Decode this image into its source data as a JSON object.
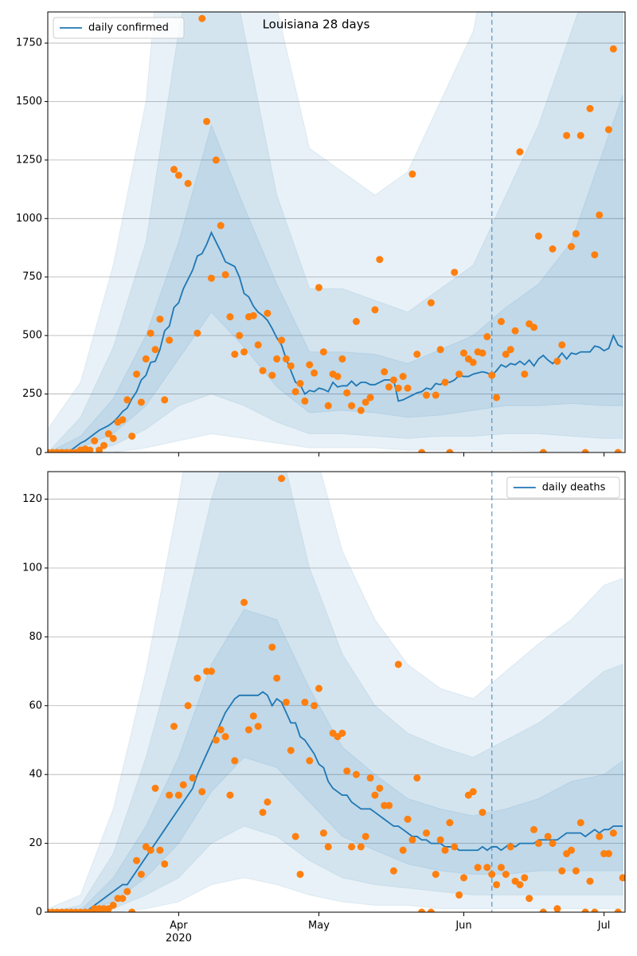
{
  "chart_data": [
    {
      "type": "line",
      "title": "Louisiana 28 days",
      "legend": "upper left",
      "grid": true,
      "xlim": [
        0,
        123.5
      ],
      "ylim": [
        0,
        1883
      ],
      "yticks": [
        0,
        250,
        500,
        750,
        1000,
        1250,
        1500,
        1750
      ],
      "vline": 95,
      "x": [
        0,
        1,
        2,
        3,
        4,
        5,
        6,
        7,
        8,
        9,
        10,
        11,
        12,
        13,
        14,
        15,
        16,
        17,
        18,
        19,
        20,
        21,
        22,
        23,
        24,
        25,
        26,
        27,
        28,
        29,
        30,
        31,
        32,
        33,
        34,
        35,
        36,
        37,
        38,
        39,
        40,
        41,
        42,
        43,
        44,
        45,
        46,
        47,
        48,
        49,
        50,
        51,
        52,
        53,
        54,
        55,
        56,
        57,
        58,
        59,
        60,
        61,
        62,
        63,
        64,
        65,
        66,
        67,
        68,
        69,
        70,
        71,
        72,
        73,
        74,
        75,
        76,
        77,
        78,
        79,
        80,
        81,
        82,
        83,
        84,
        85,
        86,
        87,
        88,
        89,
        90,
        91,
        92,
        93,
        94,
        95,
        96,
        97,
        98,
        99,
        100,
        101,
        102,
        103,
        104,
        105,
        106,
        107,
        108,
        109,
        110,
        111,
        112,
        113,
        114,
        115,
        116,
        117,
        118,
        119,
        120,
        121,
        122,
        123
      ],
      "series": [
        {
          "name": "daily confirmed",
          "color": "#1f77b4",
          "values": [
            0,
            0,
            0,
            0,
            0,
            10,
            25,
            40,
            50,
            65,
            80,
            95,
            105,
            115,
            130,
            150,
            175,
            190,
            230,
            260,
            310,
            330,
            385,
            390,
            440,
            520,
            540,
            620,
            640,
            700,
            740,
            780,
            840,
            850,
            890,
            940,
            900,
            860,
            815,
            805,
            795,
            750,
            680,
            665,
            625,
            600,
            585,
            565,
            530,
            490,
            460,
            400,
            350,
            300,
            290,
            250,
            265,
            260,
            275,
            270,
            260,
            300,
            280,
            285,
            285,
            305,
            285,
            300,
            300,
            290,
            290,
            300,
            310,
            310,
            310,
            220,
            225,
            235,
            245,
            255,
            260,
            275,
            270,
            295,
            290,
            305,
            300,
            310,
            330,
            325,
            325,
            335,
            340,
            345,
            340,
            330,
            350,
            375,
            365,
            380,
            375,
            390,
            375,
            395,
            370,
            400,
            415,
            395,
            380,
            400,
            425,
            400,
            425,
            420,
            430,
            430,
            430,
            455,
            450,
            435,
            445,
            500,
            460,
            450
          ]
        }
      ],
      "points": {
        "color": "#ff7f0e",
        "values": [
          0,
          0,
          0,
          0,
          0,
          0,
          0,
          10,
          15,
          10,
          50,
          10,
          30,
          80,
          60,
          130,
          140,
          225,
          70,
          335,
          215,
          400,
          510,
          440,
          570,
          225,
          480,
          1210,
          1185,
          null,
          1150,
          null,
          510,
          1855,
          1415,
          745,
          1250,
          970,
          760,
          580,
          420,
          500,
          430,
          580,
          585,
          460,
          350,
          595,
          330,
          400,
          480,
          400,
          370,
          260,
          295,
          220,
          375,
          340,
          705,
          430,
          200,
          335,
          325,
          400,
          255,
          200,
          560,
          180,
          215,
          235,
          610,
          825,
          345,
          280,
          310,
          275,
          325,
          275,
          1190,
          420,
          0,
          245,
          640,
          245,
          440,
          300,
          0,
          770,
          335,
          425,
          400,
          385,
          430,
          425,
          495,
          330,
          235,
          560,
          420,
          440,
          520,
          1285,
          335,
          550,
          535,
          925,
          0,
          null,
          870,
          390,
          460,
          1355,
          880,
          935,
          1355,
          0,
          1470,
          845,
          1015,
          null,
          1380,
          1725,
          0,
          null
        ]
      },
      "band_color": "#1f77b4",
      "band_x": [
        0,
        7,
        14,
        21,
        28,
        35,
        42,
        49,
        56,
        63,
        70,
        77,
        84,
        91,
        98,
        105,
        112,
        119,
        123
      ],
      "bands": [
        {
          "lower": [
            0,
            0,
            0,
            20,
            50,
            80,
            60,
            40,
            20,
            20,
            20,
            10,
            10,
            10,
            10,
            5,
            5,
            5,
            5
          ],
          "upper": [
            100,
            300,
            800,
            1500,
            3000,
            4000,
            3000,
            1900,
            1300,
            1200,
            1100,
            1200,
            1500,
            1800,
            2500,
            3000,
            3500,
            4000,
            4500
          ]
        },
        {
          "lower": [
            0,
            5,
            30,
            100,
            200,
            250,
            200,
            130,
            80,
            80,
            70,
            60,
            70,
            70,
            80,
            80,
            70,
            60,
            60
          ],
          "upper": [
            0,
            150,
            450,
            900,
            1800,
            2500,
            1800,
            1100,
            700,
            700,
            650,
            600,
            700,
            800,
            1100,
            1400,
            1800,
            2200,
            2500
          ]
        },
        {
          "lower": [
            0,
            20,
            80,
            200,
            400,
            600,
            450,
            280,
            170,
            180,
            170,
            150,
            160,
            180,
            200,
            200,
            210,
            200,
            200
          ],
          "upper": [
            0,
            70,
            230,
            500,
            900,
            1400,
            1050,
            720,
            430,
            430,
            420,
            380,
            440,
            500,
            620,
            720,
            900,
            1300,
            1530
          ]
        }
      ]
    },
    {
      "type": "line",
      "legend": "upper right",
      "grid": true,
      "xlim": [
        0,
        123.5
      ],
      "ylim": [
        0,
        128
      ],
      "yticks": [
        0,
        20,
        40,
        60,
        80,
        100,
        120
      ],
      "xticks": [
        {
          "value": 28,
          "label": "Apr"
        },
        {
          "value": 58,
          "label": "May"
        },
        {
          "value": 89,
          "label": "Jun"
        },
        {
          "value": 119,
          "label": "Jul"
        }
      ],
      "x_offset_label": "2020",
      "vline": 95,
      "x": [
        0,
        1,
        2,
        3,
        4,
        5,
        6,
        7,
        8,
        9,
        10,
        11,
        12,
        13,
        14,
        15,
        16,
        17,
        18,
        19,
        20,
        21,
        22,
        23,
        24,
        25,
        26,
        27,
        28,
        29,
        30,
        31,
        32,
        33,
        34,
        35,
        36,
        37,
        38,
        39,
        40,
        41,
        42,
        43,
        44,
        45,
        46,
        47,
        48,
        49,
        50,
        51,
        52,
        53,
        54,
        55,
        56,
        57,
        58,
        59,
        60,
        61,
        62,
        63,
        64,
        65,
        66,
        67,
        68,
        69,
        70,
        71,
        72,
        73,
        74,
        75,
        76,
        77,
        78,
        79,
        80,
        81,
        82,
        83,
        84,
        85,
        86,
        87,
        88,
        89,
        90,
        91,
        92,
        93,
        94,
        95,
        96,
        97,
        98,
        99,
        100,
        101,
        102,
        103,
        104,
        105,
        106,
        107,
        108,
        109,
        110,
        111,
        112,
        113,
        114,
        115,
        116,
        117,
        118,
        119,
        120,
        121,
        122,
        123
      ],
      "series": [
        {
          "name": "daily deaths",
          "color": "#1f77b4",
          "values": [
            0,
            0,
            0,
            0,
            0,
            0,
            0,
            0,
            0,
            1,
            2,
            3,
            4,
            5,
            6,
            7,
            8,
            8,
            10,
            12,
            14,
            16,
            18,
            20,
            22,
            24,
            26,
            28,
            30,
            32,
            34,
            36,
            40,
            43,
            46,
            49,
            52,
            55,
            58,
            60,
            62,
            63,
            63,
            63,
            63,
            63,
            64,
            63,
            60,
            62,
            61,
            58,
            55,
            55,
            51,
            50,
            48,
            46,
            43,
            42,
            38,
            36,
            35,
            34,
            34,
            32,
            31,
            30,
            30,
            30,
            29,
            28,
            27,
            26,
            25,
            25,
            24,
            23,
            22,
            22,
            21,
            21,
            20,
            20,
            20,
            19,
            19,
            19,
            18,
            18,
            18,
            18,
            18,
            19,
            18,
            19,
            19,
            18,
            19,
            20,
            19,
            20,
            20,
            20,
            20,
            21,
            21,
            21,
            21,
            21,
            22,
            23,
            23,
            23,
            23,
            22,
            23,
            24,
            23,
            24,
            24,
            25,
            25,
            25
          ]
        }
      ],
      "points": {
        "color": "#ff7f0e",
        "values": [
          0,
          0,
          0,
          0,
          0,
          0,
          0,
          0,
          0,
          0,
          1,
          1,
          1,
          1,
          2,
          4,
          4,
          6,
          0,
          15,
          11,
          19,
          18,
          36,
          18,
          14,
          34,
          54,
          34,
          37,
          60,
          39,
          68,
          35,
          70,
          70,
          50,
          53,
          51,
          34,
          44,
          null,
          90,
          53,
          57,
          54,
          29,
          32,
          77,
          68,
          126,
          61,
          47,
          22,
          11,
          61,
          44,
          60,
          65,
          23,
          19,
          52,
          51,
          52,
          41,
          19,
          40,
          19,
          22,
          39,
          34,
          36,
          31,
          31,
          12,
          72,
          18,
          27,
          21,
          39,
          0,
          23,
          0,
          11,
          21,
          18,
          26,
          19,
          5,
          10,
          34,
          35,
          13,
          29,
          13,
          11,
          8,
          13,
          11,
          19,
          9,
          8,
          10,
          4,
          24,
          20,
          0,
          22,
          20,
          1,
          12,
          17,
          18,
          12,
          26,
          0,
          9,
          0,
          22,
          17,
          17,
          23,
          0,
          10
        ]
      },
      "band_color": "#1f77b4",
      "band_x": [
        0,
        7,
        14,
        21,
        28,
        35,
        42,
        49,
        56,
        63,
        70,
        77,
        84,
        91,
        98,
        105,
        112,
        119,
        123
      ],
      "bands": [
        {
          "lower": [
            0,
            0,
            0,
            1,
            3,
            8,
            10,
            8,
            5,
            3,
            2,
            2,
            1,
            1,
            1,
            1,
            1,
            1,
            1
          ],
          "upper": [
            1,
            5,
            30,
            70,
            120,
            180,
            200,
            190,
            140,
            105,
            85,
            72,
            65,
            62,
            70,
            78,
            85,
            95,
            97
          ]
        },
        {
          "lower": [
            0,
            0,
            1,
            5,
            10,
            20,
            25,
            22,
            15,
            10,
            8,
            7,
            6,
            5,
            5,
            5,
            5,
            5,
            5
          ],
          "upper": [
            0,
            2,
            17,
            45,
            80,
            120,
            150,
            140,
            100,
            75,
            60,
            52,
            48,
            45,
            50,
            55,
            62,
            70,
            72
          ]
        },
        {
          "lower": [
            0,
            0,
            3,
            10,
            20,
            35,
            45,
            42,
            32,
            22,
            18,
            14,
            12,
            11,
            11,
            12,
            12,
            12,
            12
          ],
          "upper": [
            0,
            0.5,
            10,
            25,
            45,
            72,
            88,
            85,
            65,
            48,
            40,
            33,
            30,
            28,
            30,
            33,
            38,
            40,
            44
          ]
        }
      ]
    }
  ]
}
